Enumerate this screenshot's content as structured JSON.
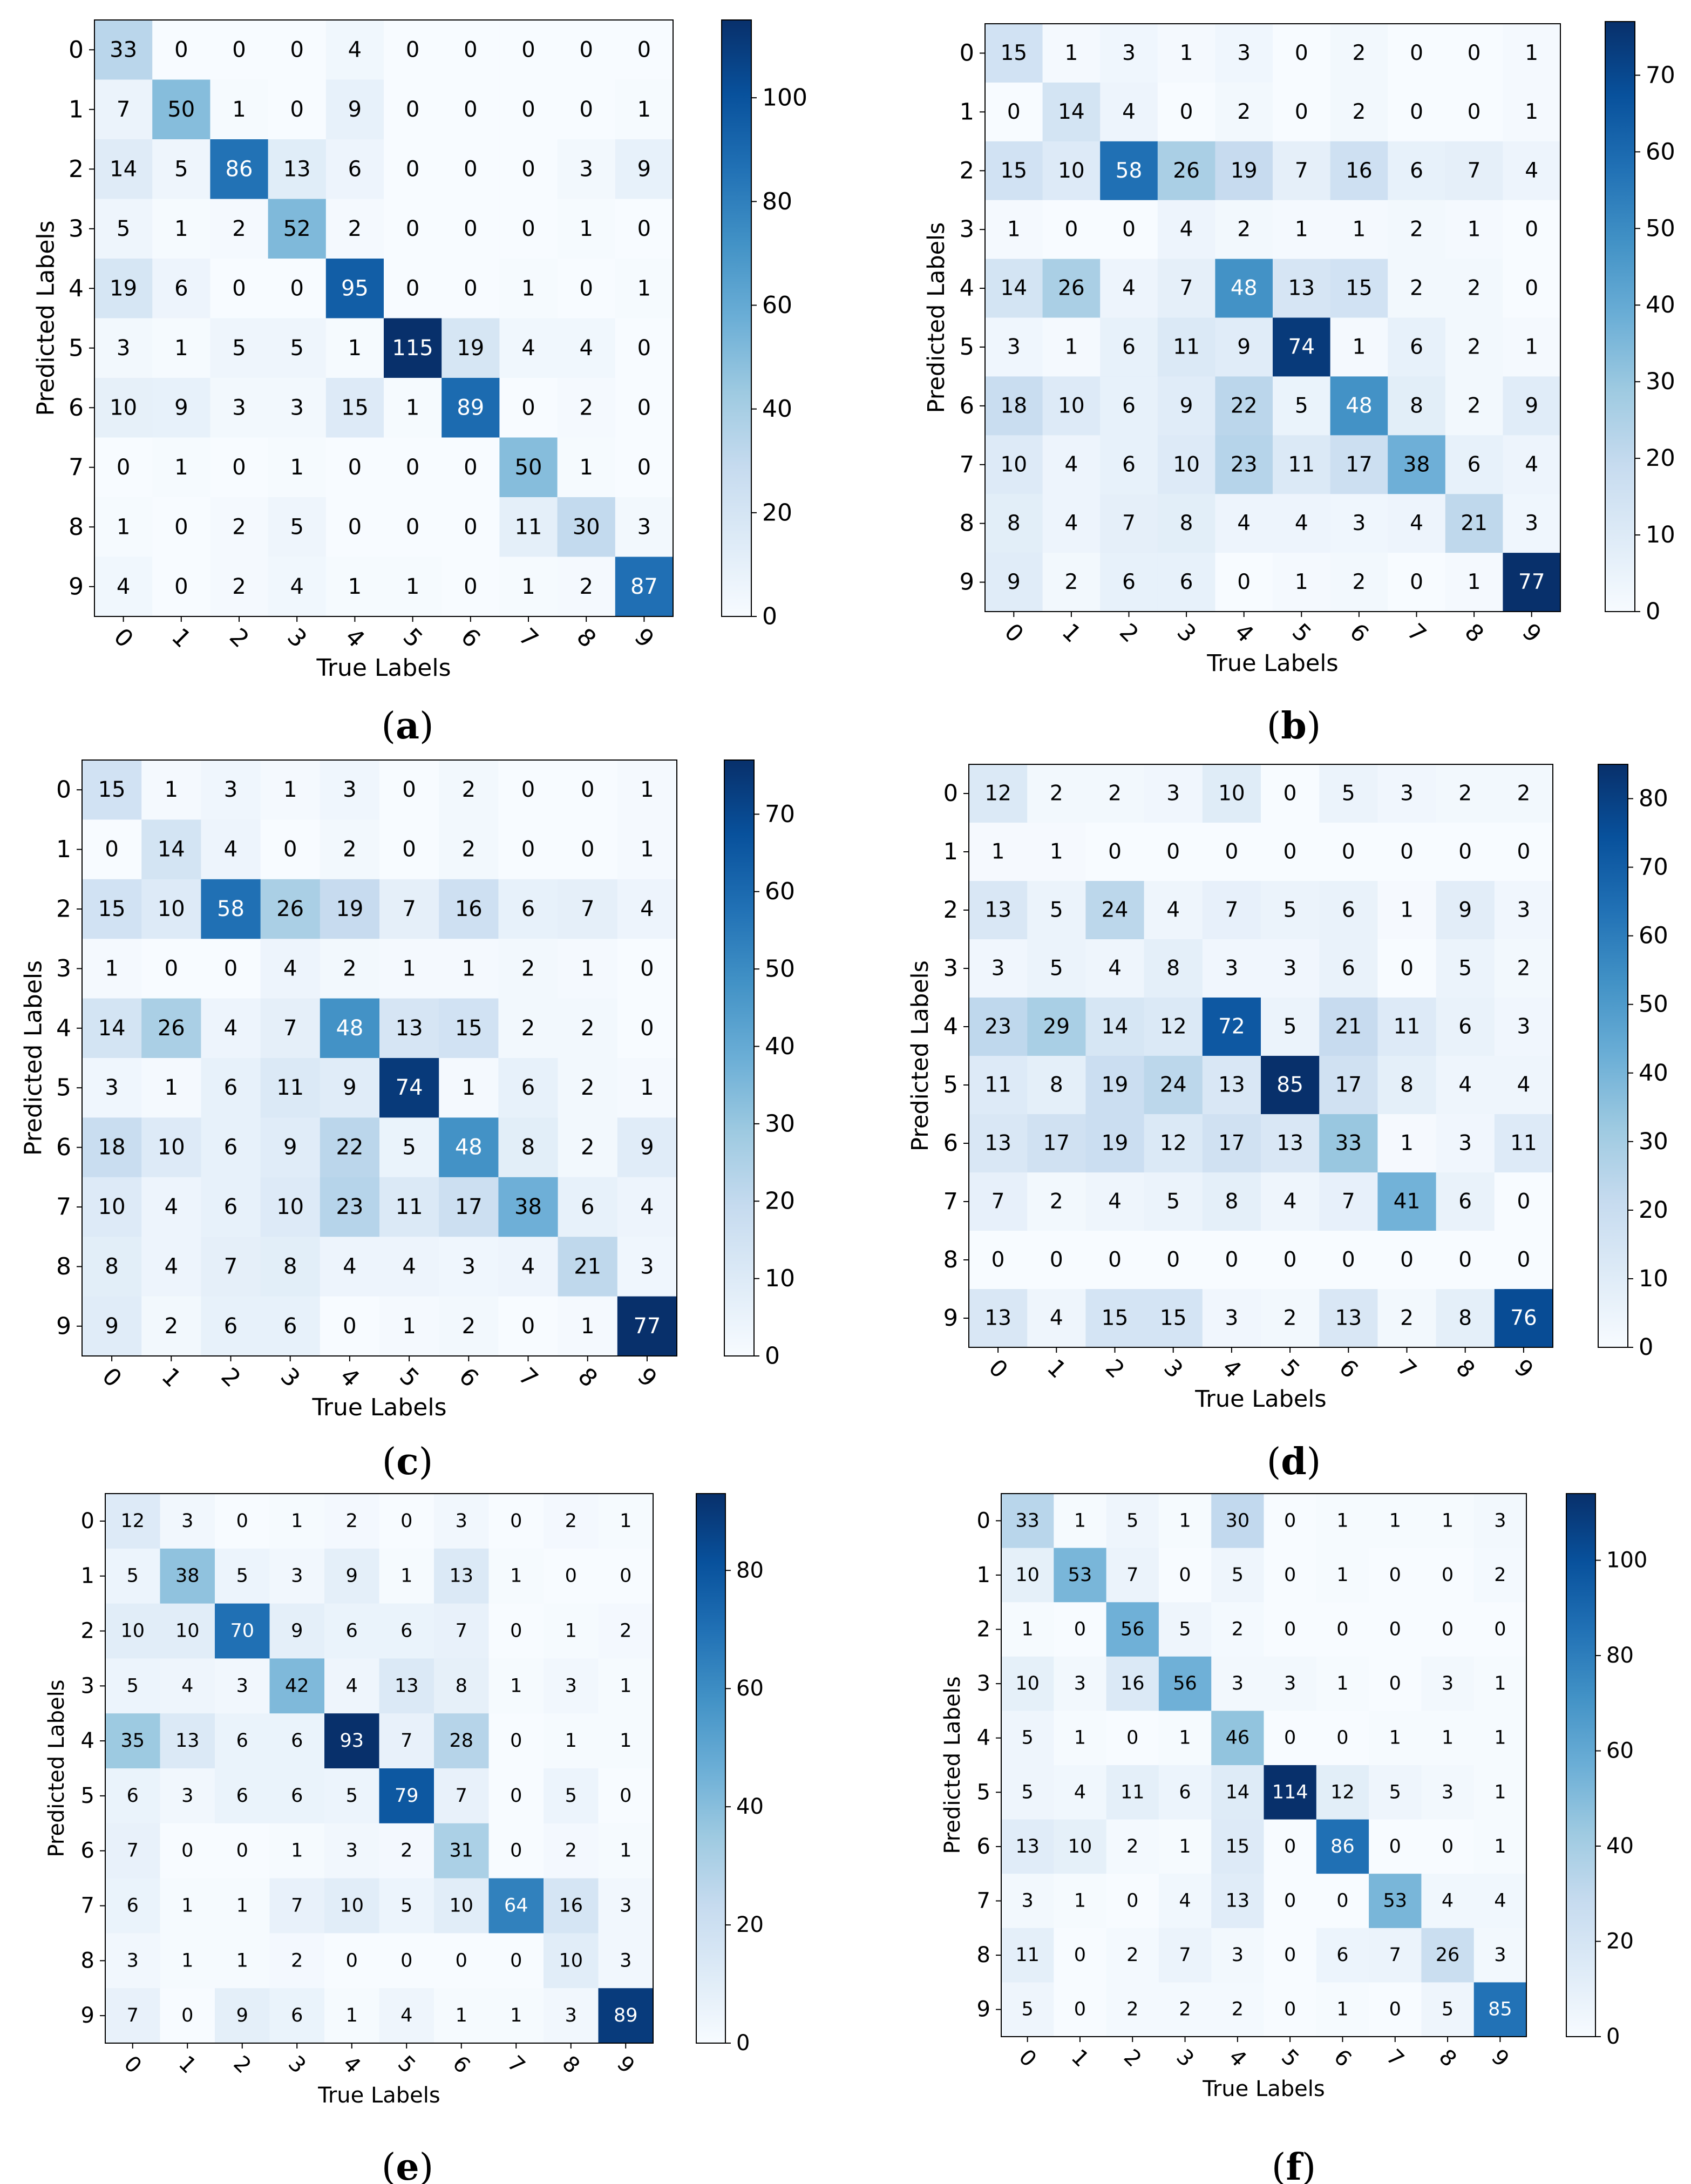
{
  "chart_data": [
    {
      "type": "heatmap",
      "panel_label": "(a)",
      "xlabel": "True Labels",
      "ylabel": "Predicted Labels",
      "x_ticks": [
        "0",
        "1",
        "2",
        "3",
        "4",
        "5",
        "6",
        "7",
        "8",
        "9"
      ],
      "y_ticks": [
        "0",
        "1",
        "2",
        "3",
        "4",
        "5",
        "6",
        "7",
        "8",
        "9"
      ],
      "colorbar": {
        "ticks": [
          0,
          20,
          40,
          60,
          80,
          100
        ],
        "range": [
          0,
          115
        ]
      },
      "values": [
        [
          33,
          0,
          0,
          0,
          4,
          0,
          0,
          0,
          0,
          0
        ],
        [
          7,
          50,
          1,
          0,
          9,
          0,
          0,
          0,
          0,
          1
        ],
        [
          14,
          5,
          86,
          13,
          6,
          0,
          0,
          0,
          3,
          9
        ],
        [
          5,
          1,
          2,
          52,
          2,
          0,
          0,
          0,
          1,
          0
        ],
        [
          19,
          6,
          0,
          0,
          95,
          0,
          0,
          1,
          0,
          1
        ],
        [
          3,
          1,
          5,
          5,
          1,
          115,
          19,
          4,
          4,
          0
        ],
        [
          10,
          9,
          3,
          3,
          15,
          1,
          89,
          0,
          2,
          0
        ],
        [
          0,
          1,
          0,
          1,
          0,
          0,
          0,
          50,
          1,
          0
        ],
        [
          1,
          0,
          2,
          5,
          0,
          0,
          0,
          11,
          30,
          3
        ],
        [
          4,
          0,
          2,
          4,
          1,
          1,
          0,
          1,
          2,
          87
        ]
      ]
    },
    {
      "type": "heatmap",
      "panel_label": "(b)",
      "xlabel": "True Labels",
      "ylabel": "Predicted Labels",
      "x_ticks": [
        "0",
        "1",
        "2",
        "3",
        "4",
        "5",
        "6",
        "7",
        "8",
        "9"
      ],
      "y_ticks": [
        "0",
        "1",
        "2",
        "3",
        "4",
        "5",
        "6",
        "7",
        "8",
        "9"
      ],
      "colorbar": {
        "ticks": [
          0,
          10,
          20,
          30,
          40,
          50,
          60,
          70
        ],
        "range": [
          0,
          77
        ]
      },
      "values": [
        [
          15,
          1,
          3,
          1,
          3,
          0,
          2,
          0,
          0,
          1
        ],
        [
          0,
          14,
          4,
          0,
          2,
          0,
          2,
          0,
          0,
          1
        ],
        [
          15,
          10,
          58,
          26,
          19,
          7,
          16,
          6,
          7,
          4
        ],
        [
          1,
          0,
          0,
          4,
          2,
          1,
          1,
          2,
          1,
          0
        ],
        [
          14,
          26,
          4,
          7,
          48,
          13,
          15,
          2,
          2,
          0
        ],
        [
          3,
          1,
          6,
          11,
          9,
          74,
          1,
          6,
          2,
          1
        ],
        [
          18,
          10,
          6,
          9,
          22,
          5,
          48,
          8,
          2,
          9
        ],
        [
          10,
          4,
          6,
          10,
          23,
          11,
          17,
          38,
          6,
          4
        ],
        [
          8,
          4,
          7,
          8,
          4,
          4,
          3,
          4,
          21,
          3
        ],
        [
          9,
          2,
          6,
          6,
          0,
          1,
          2,
          0,
          1,
          77
        ]
      ]
    },
    {
      "type": "heatmap",
      "panel_label": "(c)",
      "xlabel": "True Labels",
      "ylabel": "Predicted Labels",
      "x_ticks": [
        "0",
        "1",
        "2",
        "3",
        "4",
        "5",
        "6",
        "7",
        "8",
        "9"
      ],
      "y_ticks": [
        "0",
        "1",
        "2",
        "3",
        "4",
        "5",
        "6",
        "7",
        "8",
        "9"
      ],
      "colorbar": {
        "ticks": [
          0,
          10,
          20,
          30,
          40,
          50,
          60,
          70
        ],
        "range": [
          0,
          77
        ]
      },
      "values": [
        [
          15,
          1,
          3,
          1,
          3,
          0,
          2,
          0,
          0,
          1
        ],
        [
          0,
          14,
          4,
          0,
          2,
          0,
          2,
          0,
          0,
          1
        ],
        [
          15,
          10,
          58,
          26,
          19,
          7,
          16,
          6,
          7,
          4
        ],
        [
          1,
          0,
          0,
          4,
          2,
          1,
          1,
          2,
          1,
          0
        ],
        [
          14,
          26,
          4,
          7,
          48,
          13,
          15,
          2,
          2,
          0
        ],
        [
          3,
          1,
          6,
          11,
          9,
          74,
          1,
          6,
          2,
          1
        ],
        [
          18,
          10,
          6,
          9,
          22,
          5,
          48,
          8,
          2,
          9
        ],
        [
          10,
          4,
          6,
          10,
          23,
          11,
          17,
          38,
          6,
          4
        ],
        [
          8,
          4,
          7,
          8,
          4,
          4,
          3,
          4,
          21,
          3
        ],
        [
          9,
          2,
          6,
          6,
          0,
          1,
          2,
          0,
          1,
          77
        ]
      ]
    },
    {
      "type": "heatmap",
      "panel_label": "(d)",
      "xlabel": "True Labels",
      "ylabel": "Predicted Labels",
      "x_ticks": [
        "0",
        "1",
        "2",
        "3",
        "4",
        "5",
        "6",
        "7",
        "8",
        "9"
      ],
      "y_ticks": [
        "0",
        "1",
        "2",
        "3",
        "4",
        "5",
        "6",
        "7",
        "8",
        "9"
      ],
      "colorbar": {
        "ticks": [
          0,
          10,
          20,
          30,
          40,
          50,
          60,
          70,
          80
        ],
        "range": [
          0,
          85
        ]
      },
      "values": [
        [
          12,
          2,
          2,
          3,
          10,
          0,
          5,
          3,
          2,
          2
        ],
        [
          1,
          1,
          0,
          0,
          0,
          0,
          0,
          0,
          0,
          0
        ],
        [
          13,
          5,
          24,
          4,
          7,
          5,
          6,
          1,
          9,
          3
        ],
        [
          3,
          5,
          4,
          8,
          3,
          3,
          6,
          0,
          5,
          2
        ],
        [
          23,
          29,
          14,
          12,
          72,
          5,
          21,
          11,
          6,
          3
        ],
        [
          11,
          8,
          19,
          24,
          13,
          85,
          17,
          8,
          4,
          4
        ],
        [
          13,
          17,
          19,
          12,
          17,
          13,
          33,
          1,
          3,
          11
        ],
        [
          7,
          2,
          4,
          5,
          8,
          4,
          7,
          41,
          6,
          0
        ],
        [
          0,
          0,
          0,
          0,
          0,
          0,
          0,
          0,
          0,
          0
        ],
        [
          13,
          4,
          15,
          15,
          3,
          2,
          13,
          2,
          8,
          76
        ]
      ]
    },
    {
      "type": "heatmap",
      "panel_label": "(e)",
      "xlabel": "True Labels",
      "ylabel": "Predicted Labels",
      "x_ticks": [
        "0",
        "1",
        "2",
        "3",
        "4",
        "5",
        "6",
        "7",
        "8",
        "9"
      ],
      "y_ticks": [
        "0",
        "1",
        "2",
        "3",
        "4",
        "5",
        "6",
        "7",
        "8",
        "9"
      ],
      "colorbar": {
        "ticks": [
          0,
          20,
          40,
          60,
          80
        ],
        "range": [
          0,
          93
        ]
      },
      "values": [
        [
          12,
          3,
          0,
          1,
          2,
          0,
          3,
          0,
          2,
          1
        ],
        [
          5,
          38,
          5,
          3,
          9,
          1,
          13,
          1,
          0,
          0
        ],
        [
          10,
          10,
          70,
          9,
          6,
          6,
          7,
          0,
          1,
          2
        ],
        [
          5,
          4,
          3,
          42,
          4,
          13,
          8,
          1,
          3,
          1
        ],
        [
          35,
          13,
          6,
          6,
          93,
          7,
          28,
          0,
          1,
          1
        ],
        [
          6,
          3,
          6,
          6,
          5,
          79,
          7,
          0,
          5,
          0
        ],
        [
          7,
          0,
          0,
          1,
          3,
          2,
          31,
          0,
          2,
          1
        ],
        [
          6,
          1,
          1,
          7,
          10,
          5,
          10,
          64,
          16,
          3
        ],
        [
          3,
          1,
          1,
          2,
          0,
          0,
          0,
          0,
          10,
          3
        ],
        [
          7,
          0,
          9,
          6,
          1,
          4,
          1,
          1,
          3,
          89
        ]
      ]
    },
    {
      "type": "heatmap",
      "panel_label": "(f)",
      "xlabel": "True Labels",
      "ylabel": "Predicted Labels",
      "x_ticks": [
        "0",
        "1",
        "2",
        "3",
        "4",
        "5",
        "6",
        "7",
        "8",
        "9"
      ],
      "y_ticks": [
        "0",
        "1",
        "2",
        "3",
        "4",
        "5",
        "6",
        "7",
        "8",
        "9"
      ],
      "colorbar": {
        "ticks": [
          0,
          20,
          40,
          60,
          80,
          100
        ],
        "range": [
          0,
          114
        ]
      },
      "values": [
        [
          33,
          1,
          5,
          1,
          30,
          0,
          1,
          1,
          1,
          3
        ],
        [
          10,
          53,
          7,
          0,
          5,
          0,
          1,
          0,
          0,
          2
        ],
        [
          1,
          0,
          56,
          5,
          2,
          0,
          0,
          0,
          0,
          0
        ],
        [
          10,
          3,
          16,
          56,
          3,
          3,
          1,
          0,
          3,
          1
        ],
        [
          5,
          1,
          0,
          1,
          46,
          0,
          0,
          1,
          1,
          1
        ],
        [
          5,
          4,
          11,
          6,
          14,
          114,
          12,
          5,
          3,
          1
        ],
        [
          13,
          10,
          2,
          1,
          15,
          0,
          86,
          0,
          0,
          1
        ],
        [
          3,
          1,
          0,
          4,
          13,
          0,
          0,
          53,
          4,
          4
        ],
        [
          11,
          0,
          2,
          7,
          3,
          0,
          6,
          7,
          26,
          3
        ],
        [
          5,
          0,
          2,
          2,
          2,
          0,
          1,
          0,
          5,
          85
        ]
      ]
    }
  ]
}
